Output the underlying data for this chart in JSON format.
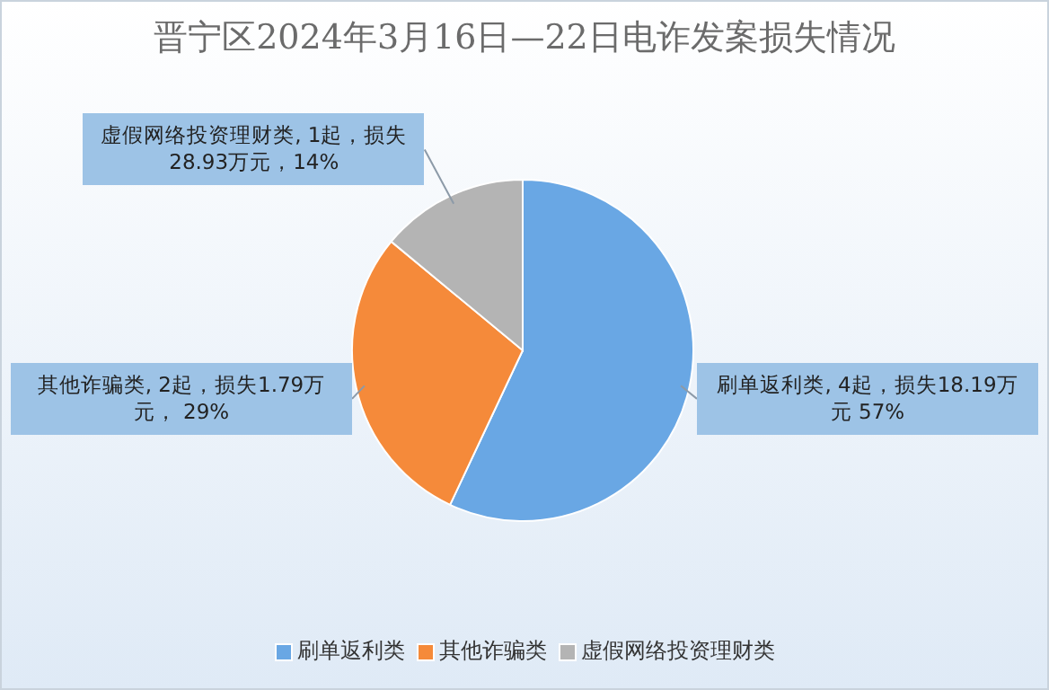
{
  "chart_data": {
    "type": "pie",
    "title": "晋宁区2024年3月16日—22日电诈发案损失情况",
    "categories": [
      "刷单返利类",
      "其他诈骗类",
      "虚假网络投资理财类"
    ],
    "values": [
      57,
      29,
      14
    ],
    "colors": [
      "#69a7e4",
      "#f58a3a",
      "#b4b4b4"
    ],
    "value_labels": [
      "刷单返利类, 4起，损失18.19万元 57%",
      "其他诈骗类, 2起，损失1.79万元， 29%",
      "虚假网络投资理财类, 1起，损失28.93万元，14%"
    ],
    "legend": "bottom"
  }
}
